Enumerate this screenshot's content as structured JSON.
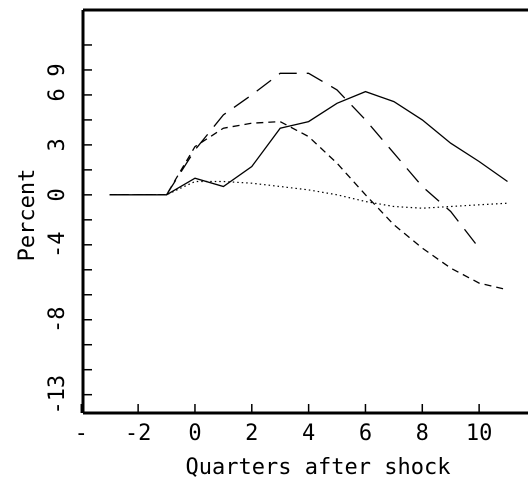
{
  "chart_data": {
    "type": "line",
    "xlabel": "Quarters after shock",
    "ylabel": "Percent",
    "x": [
      -3,
      -2,
      -1,
      0,
      1,
      2,
      3,
      4,
      5,
      6,
      7,
      8,
      9,
      10,
      11
    ],
    "series": [
      {
        "color": "#000000",
        "dash": "solid",
        "values": [
          0,
          0,
          0,
          1.0,
          0.5,
          1.7,
          4.0,
          4.4,
          5.5,
          6.2,
          5.6,
          4.5,
          3.1,
          2.0,
          0.8
        ]
      },
      {
        "color": "#000000",
        "dash": "long",
        "values": [
          0,
          0,
          0,
          2.7,
          4.8,
          6.0,
          7.3,
          7.3,
          6.3,
          4.5,
          2.5,
          0.5,
          -1.0,
          -3.2,
          null
        ]
      },
      {
        "color": "#000000",
        "dash": "short",
        "values": [
          0,
          0,
          0,
          2.9,
          4.0,
          4.3,
          4.4,
          3.5,
          1.9,
          0,
          -1.8,
          -3.2,
          -4.4,
          -5.3,
          -5.7
        ]
      },
      {
        "color": "#000000",
        "dash": "dotted",
        "values": [
          0,
          0,
          0,
          0.8,
          0.8,
          0.7,
          0.5,
          0.3,
          0,
          -0.4,
          -0.7,
          -0.8,
          -0.7,
          -0.6,
          -0.5
        ]
      }
    ],
    "xlim": [
      -3.94,
      11.72
    ],
    "ylim": [
      -13.1,
      11.1
    ],
    "xticks": [
      {
        "value": -4,
        "label": "-"
      },
      -2,
      0,
      2,
      4,
      6,
      8,
      10
    ],
    "yticks": [
      {
        "value": 7.5,
        "label": "9"
      },
      6,
      3,
      0,
      {
        "value": -3,
        "label": "-4"
      },
      {
        "value": -7.5,
        "label": "-8"
      },
      {
        "value": -12,
        "label": "-13"
      }
    ],
    "yminorticks": [
      9,
      4.5,
      1.5,
      -1.5,
      -4.5,
      -6,
      -9,
      -10.5
    ],
    "grid": false
  }
}
